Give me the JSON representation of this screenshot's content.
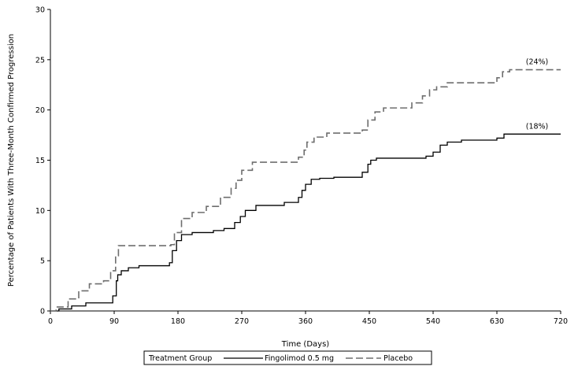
{
  "chart_data": {
    "type": "line",
    "step": true,
    "xlabel": "Time (Days)",
    "ylabel": "Percentage of Patients With Three-Month Confirmed Progression",
    "xlim": [
      0,
      720
    ],
    "ylim": [
      0,
      30
    ],
    "xticks": [
      0,
      90,
      180,
      270,
      360,
      450,
      540,
      630,
      720
    ],
    "yticks": [
      0,
      5,
      10,
      15,
      20,
      25,
      30
    ],
    "grid": false,
    "legend": {
      "placement": "bottom",
      "title": "Treatment Group",
      "entries": [
        "Fingolimod 0.5 mg",
        "Placebo"
      ]
    },
    "series": [
      {
        "name": "Fingolimod 0.5 mg",
        "style": "solid",
        "color": "#000000",
        "end_label": "(18%)",
        "x": [
          0,
          12,
          30,
          50,
          88,
          93,
          95,
          100,
          110,
          125,
          168,
          172,
          178,
          185,
          200,
          230,
          245,
          260,
          268,
          275,
          290,
          330,
          350,
          355,
          360,
          368,
          380,
          400,
          440,
          448,
          452,
          460,
          490,
          530,
          540,
          550,
          560,
          580,
          630,
          640,
          720
        ],
        "y": [
          0,
          0.2,
          0.5,
          0.8,
          1.5,
          3.0,
          3.6,
          4.0,
          4.3,
          4.5,
          4.8,
          6.0,
          7.0,
          7.6,
          7.8,
          8.0,
          8.2,
          8.8,
          9.4,
          10.0,
          10.5,
          10.8,
          11.3,
          12.0,
          12.6,
          13.1,
          13.2,
          13.3,
          13.8,
          14.6,
          15.0,
          15.2,
          15.2,
          15.4,
          15.8,
          16.5,
          16.8,
          17.0,
          17.2,
          17.6,
          17.6
        ],
        "end_value": 17.6
      },
      {
        "name": "Placebo",
        "style": "dashed",
        "color": "#000000",
        "end_label": "(24%)",
        "x": [
          0,
          8,
          25,
          40,
          55,
          75,
          85,
          92,
          96,
          170,
          175,
          185,
          200,
          220,
          240,
          255,
          262,
          270,
          285,
          350,
          358,
          362,
          372,
          390,
          440,
          448,
          458,
          470,
          510,
          525,
          535,
          545,
          560,
          630,
          638,
          648,
          720
        ],
        "y": [
          0,
          0.4,
          1.2,
          2.0,
          2.7,
          3.0,
          4.0,
          5.5,
          6.5,
          6.6,
          7.8,
          9.2,
          9.8,
          10.4,
          11.3,
          12.2,
          13.0,
          14.0,
          14.8,
          15.3,
          16.0,
          16.8,
          17.3,
          17.7,
          18.0,
          19.0,
          19.8,
          20.2,
          20.7,
          21.4,
          22.0,
          22.3,
          22.7,
          23.2,
          23.8,
          24.0,
          24.0
        ],
        "end_value": 24.0
      }
    ]
  }
}
